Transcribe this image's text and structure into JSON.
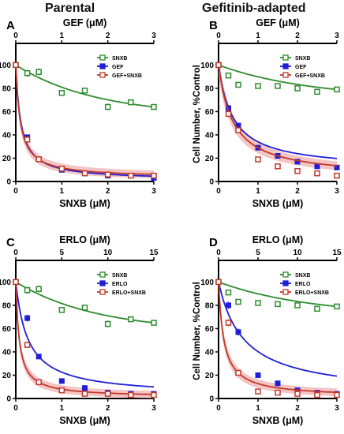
{
  "headers": {
    "left": "Parental",
    "right": "Gefitinib-adapted"
  },
  "colors": {
    "snxb": "#2e8b2e",
    "drug": "#1f1fd6",
    "combo": "#c0392b",
    "combo_band": "#f3b5b5",
    "axis": "#000000"
  },
  "chart_data": [
    {
      "type": "scatter",
      "panel_label": "A",
      "top_xlabel": "GEF (μM)",
      "top_xlim": [
        0,
        3
      ],
      "top_ticks": [
        "0",
        "1",
        "2",
        "3"
      ],
      "xlabel": "SNXB (μM)",
      "xlim": [
        0,
        3
      ],
      "x_ticks": [
        "0",
        "1",
        "2",
        "3"
      ],
      "ylabel": "Cell Number, %Control",
      "ylim": [
        0,
        105
      ],
      "y_ticks": [
        "0",
        "20",
        "40",
        "60",
        "80",
        "100"
      ],
      "legend_position": "top-right",
      "series": [
        {
          "name": "SNXB",
          "x": [
            0,
            0.25,
            0.5,
            1,
            1.5,
            2,
            2.5,
            3
          ],
          "y": [
            100,
            93,
            94,
            76,
            78,
            64,
            68,
            64
          ],
          "err": [
            3,
            3,
            3,
            2,
            2,
            3,
            1,
            2
          ]
        },
        {
          "name": "GEF",
          "x": [
            0,
            0.25,
            0.5,
            1,
            1.5,
            2,
            2.5,
            3
          ],
          "y": [
            100,
            38,
            19,
            10,
            7,
            5,
            5,
            3
          ],
          "err": [
            2,
            2,
            1,
            1,
            1,
            1,
            1,
            1
          ]
        },
        {
          "name": "GEF+SNXB",
          "x": [
            0,
            0.25,
            0.5,
            1,
            1.5,
            2,
            2.5,
            3
          ],
          "y": [
            100,
            36,
            19,
            11,
            7,
            6,
            5,
            5
          ],
          "err": [
            2,
            2,
            1,
            1,
            1,
            1,
            1,
            1
          ]
        }
      ]
    },
    {
      "type": "scatter",
      "panel_label": "B",
      "top_xlabel": "GEF (μM)",
      "top_xlim": [
        0,
        3
      ],
      "top_ticks": [
        "0",
        "1",
        "2",
        "3"
      ],
      "xlabel": "SNXB (μM)",
      "xlim": [
        0,
        3
      ],
      "x_ticks": [
        "0",
        "1",
        "2",
        "3"
      ],
      "ylabel": "Cell Number, %Control",
      "ylim": [
        0,
        105
      ],
      "y_ticks": [
        "0",
        "20",
        "40",
        "60",
        "80",
        "100"
      ],
      "legend_position": "top-right",
      "series": [
        {
          "name": "SNXB",
          "x": [
            0,
            0.25,
            0.5,
            1,
            1.5,
            2,
            2.5,
            3
          ],
          "y": [
            100,
            91,
            83,
            82,
            82,
            80,
            77,
            79
          ],
          "err": [
            2,
            2,
            2,
            1,
            1,
            1,
            1,
            2
          ]
        },
        {
          "name": "GEF",
          "x": [
            0,
            0.25,
            0.5,
            1,
            1.5,
            2,
            2.5,
            3
          ],
          "y": [
            100,
            63,
            48,
            29,
            22,
            17,
            13,
            12
          ],
          "err": [
            2,
            2,
            2,
            1,
            1,
            1,
            1,
            1
          ]
        },
        {
          "name": "GEF+SNXB",
          "x": [
            0,
            0.25,
            0.5,
            1,
            1.5,
            2,
            2.5,
            3
          ],
          "y": [
            100,
            58,
            44,
            19,
            13,
            9,
            7,
            5
          ],
          "err": [
            2,
            2,
            2,
            1,
            1,
            1,
            1,
            1
          ]
        }
      ]
    },
    {
      "type": "scatter",
      "panel_label": "C",
      "top_xlabel": "ERLO (μM)",
      "top_xlim": [
        0,
        15
      ],
      "top_ticks": [
        "0",
        "5",
        "10",
        "15"
      ],
      "xlabel": "SNXB (μM)",
      "xlim": [
        0,
        3
      ],
      "x_ticks": [
        "0",
        "1",
        "2",
        "3"
      ],
      "ylabel": "Cell Number, %Control",
      "ylim": [
        0,
        105
      ],
      "y_ticks": [
        "0",
        "20",
        "40",
        "60",
        "80",
        "100"
      ],
      "legend_position": "top-right",
      "series": [
        {
          "name": "SNXB",
          "x": [
            0,
            0.25,
            0.5,
            1,
            1.5,
            2,
            2.5,
            3
          ],
          "y": [
            100,
            93,
            94,
            76,
            78,
            64,
            68,
            65
          ],
          "err": [
            3,
            3,
            3,
            2,
            2,
            3,
            1,
            2
          ]
        },
        {
          "name": "ERLO",
          "x": [
            0,
            0.25,
            0.5,
            1,
            1.5,
            2,
            2.5,
            3
          ],
          "y": [
            100,
            69,
            36,
            15,
            9,
            5,
            4,
            4
          ],
          "err": [
            2,
            3,
            2,
            1,
            1,
            1,
            1,
            1
          ]
        },
        {
          "name": "ERLO+SNXB",
          "x": [
            0,
            0.25,
            0.5,
            1,
            1.5,
            2,
            2.5,
            3
          ],
          "y": [
            100,
            46,
            14,
            7,
            4,
            4,
            3,
            3
          ],
          "err": [
            2,
            2,
            1,
            1,
            1,
            1,
            1,
            1
          ]
        }
      ]
    },
    {
      "type": "scatter",
      "panel_label": "D",
      "top_xlabel": "ERLO (μM)",
      "top_xlim": [
        0,
        15
      ],
      "top_ticks": [
        "0",
        "5",
        "10",
        "15"
      ],
      "xlabel": "SNXB (μM)",
      "xlim": [
        0,
        3
      ],
      "x_ticks": [
        "0",
        "1",
        "2",
        "3"
      ],
      "ylabel": "Cell Number, %Control",
      "ylim": [
        0,
        105
      ],
      "y_ticks": [
        "0",
        "20",
        "40",
        "60",
        "80",
        "100"
      ],
      "legend_position": "top-right",
      "series": [
        {
          "name": "SNXB",
          "x": [
            0,
            0.25,
            0.5,
            1,
            1.5,
            2,
            2.5,
            3
          ],
          "y": [
            100,
            91,
            83,
            82,
            81,
            80,
            77,
            79
          ],
          "err": [
            2,
            2,
            2,
            1,
            1,
            1,
            1,
            2
          ]
        },
        {
          "name": "ERLO",
          "x": [
            0,
            0.25,
            0.5,
            1,
            1.5,
            2,
            2.5,
            3
          ],
          "y": [
            100,
            80,
            57,
            20,
            13,
            7,
            5,
            4
          ],
          "err": [
            2,
            3,
            3,
            1,
            1,
            1,
            1,
            1
          ]
        },
        {
          "name": "ERLO+SNXB",
          "x": [
            0,
            0.25,
            0.5,
            1,
            1.5,
            2,
            2.5,
            3
          ],
          "y": [
            100,
            65,
            22,
            6,
            5,
            4,
            3,
            3
          ],
          "err": [
            2,
            3,
            1,
            1,
            1,
            1,
            1,
            1
          ]
        }
      ]
    }
  ]
}
